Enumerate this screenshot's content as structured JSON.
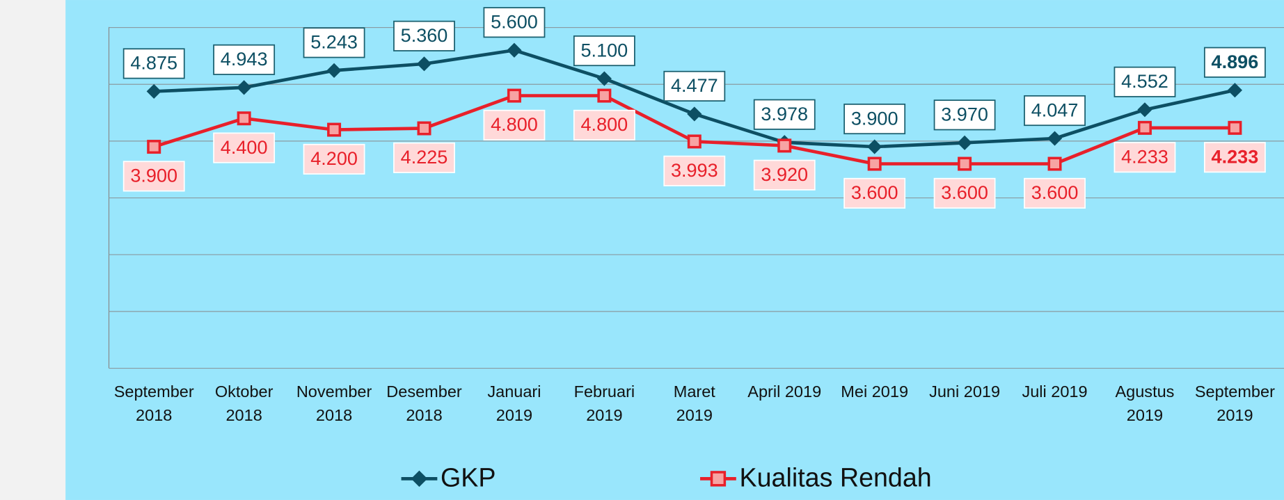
{
  "chart_data": {
    "type": "line",
    "categories": [
      "September\n2018",
      "Oktober\n2018",
      "November\n2018",
      "Desember\n2018",
      "Januari\n2019",
      "Februari\n2019",
      "Maret\n2019",
      "April 2019",
      "Mei 2019",
      "Juni 2019",
      "Juli 2019",
      "Agustus\n2019",
      "September\n2019"
    ],
    "series": [
      {
        "name": "GKP",
        "color": "#0d4f63",
        "marker": "diamond",
        "values": [
          4875,
          4943,
          5243,
          5360,
          5600,
          5100,
          4477,
          3978,
          3900,
          3970,
          4047,
          4552,
          4896
        ],
        "value_labels": [
          "4.875",
          "4.943",
          "5.243",
          "5.360",
          "5.600",
          "5.100",
          "4.477",
          "3.978",
          "3.900",
          "3.970",
          "4.047",
          "4.552",
          "4.896"
        ]
      },
      {
        "name": "Kualitas Rendah",
        "color": "#e8202a",
        "marker": "square",
        "values": [
          3900,
          4400,
          4200,
          4225,
          4800,
          4800,
          3993,
          3920,
          3600,
          3600,
          3600,
          4233,
          4233
        ],
        "value_labels": [
          "3.900",
          "4.400",
          "4.200",
          "4.225",
          "4.800",
          "4.800",
          "3.993",
          "3.920",
          "3.600",
          "3.600",
          "3.600",
          "4.233",
          "4.233"
        ]
      }
    ],
    "ylim": [
      0,
      6000
    ],
    "yticks": [
      0,
      1000,
      2000,
      3000,
      4000,
      5000,
      6000
    ],
    "grid": true,
    "legend": "bottom"
  }
}
